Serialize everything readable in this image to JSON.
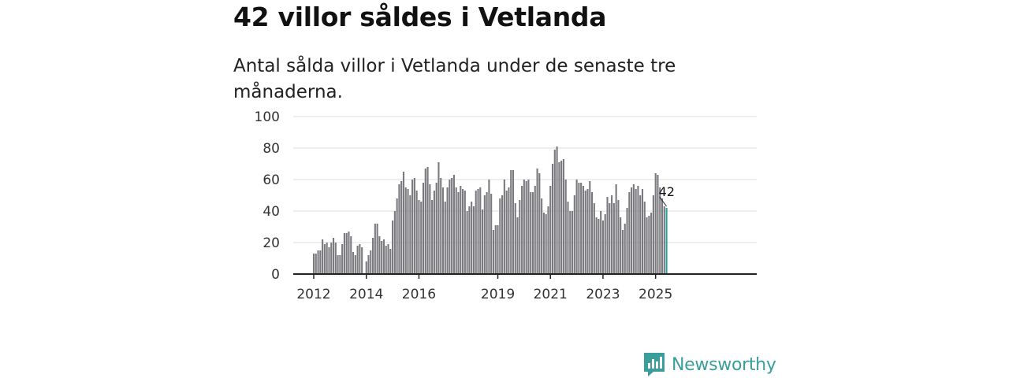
{
  "headline": "42 villor såldes i Vetlanda",
  "subtitle": "Antal sålda villor i Vetlanda under de senaste tre månaderna.",
  "brand": {
    "name": "Newsworthy"
  },
  "colors": {
    "bar": "#7a797e",
    "highlight": "#2aa3a0",
    "grid": "#dcdcdc",
    "axis": "#222222"
  },
  "chart_data": {
    "type": "bar",
    "title": "",
    "xlabel": "",
    "ylabel": "",
    "ylim": [
      0,
      100
    ],
    "yticks": [
      0,
      20,
      40,
      60,
      80,
      100
    ],
    "xticks": [
      "2012",
      "2014",
      "2016",
      "2019",
      "2021",
      "2023",
      "2025"
    ],
    "start": "2012-01",
    "last_value_label": "42",
    "values": [
      13,
      13,
      15,
      15,
      22,
      19,
      20,
      17,
      20,
      23,
      20,
      12,
      12,
      19,
      26,
      26,
      27,
      24,
      14,
      12,
      18,
      19,
      17,
      0,
      8,
      12,
      15,
      23,
      32,
      32,
      24,
      21,
      22,
      18,
      19,
      16,
      34,
      40,
      48,
      57,
      59,
      65,
      55,
      54,
      50,
      60,
      61,
      53,
      47,
      46,
      58,
      67,
      68,
      57,
      47,
      53,
      58,
      71,
      61,
      55,
      46,
      55,
      60,
      61,
      63,
      55,
      52,
      56,
      54,
      53,
      40,
      43,
      46,
      43,
      53,
      54,
      55,
      41,
      50,
      52,
      60,
      51,
      28,
      31,
      31,
      48,
      50,
      60,
      53,
      55,
      66,
      66,
      45,
      36,
      47,
      56,
      60,
      59,
      60,
      52,
      52,
      56,
      67,
      64,
      48,
      39,
      38,
      43,
      56,
      70,
      79,
      81,
      71,
      72,
      73,
      60,
      46,
      40,
      40,
      50,
      60,
      58,
      58,
      56,
      53,
      54,
      59,
      52,
      45,
      36,
      35,
      40,
      34,
      38,
      49,
      45,
      50,
      45,
      57,
      47,
      36,
      28,
      32,
      42,
      52,
      55,
      57,
      54,
      56,
      50,
      54,
      46,
      36,
      37,
      39,
      50,
      64,
      63,
      55,
      48,
      43,
      42
    ]
  }
}
